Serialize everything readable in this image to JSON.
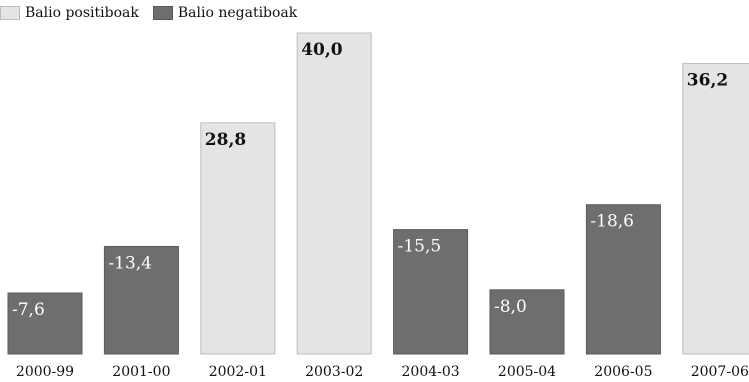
{
  "legend": {
    "positive_label": "Balio positiboak",
    "negative_label": "Balio negatiboak"
  },
  "colors": {
    "positive": "#e4e4e4",
    "positive_border": "#bdbdbd",
    "negative": "#6e6e70",
    "negative_border": "#5a5a5c",
    "label_on_positive": "#111111",
    "label_on_negative": "#ffffff"
  },
  "chart_data": {
    "type": "bar",
    "categories": [
      "2000-99",
      "2001-00",
      "2002-01",
      "2003-02",
      "2004-03",
      "2005-04",
      "2006-05",
      "2007-06"
    ],
    "values": [
      -7.6,
      -13.4,
      28.8,
      40.0,
      -15.5,
      -8.0,
      -18.6,
      36.2
    ],
    "value_labels": [
      "-7,6",
      "-13,4",
      "28,8",
      "40,0",
      "-15,5",
      "-8,0",
      "-18,6",
      "36,2"
    ],
    "series": [
      {
        "name": "Balio positiboak",
        "color": "#e4e4e4"
      },
      {
        "name": "Balio negatiboak",
        "color": "#6e6e70"
      }
    ],
    "bar_height_basis": "absolute value",
    "ylim": [
      0,
      40
    ],
    "title": "",
    "xlabel": "",
    "ylabel": "",
    "grid": false,
    "legend_position": "top-left"
  }
}
